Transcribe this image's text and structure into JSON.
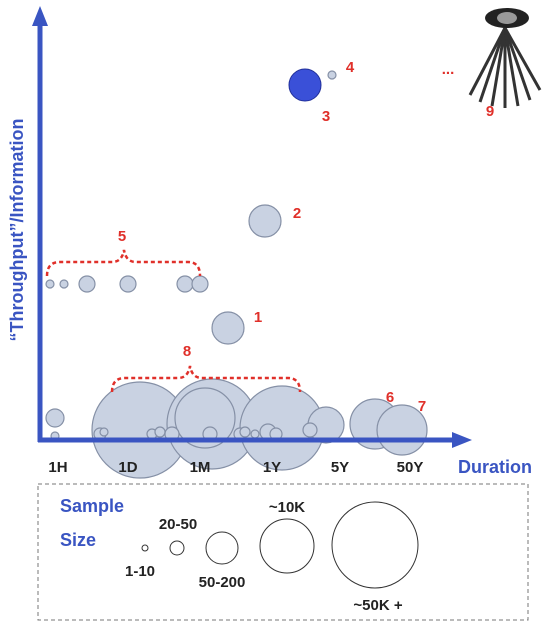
{
  "axes": {
    "y_label": "“Throughput”/Information",
    "x_label": "Duration",
    "x_ticks": [
      "1H",
      "1D",
      "1M",
      "1Y",
      "5Y",
      "50Y"
    ]
  },
  "annotations": [
    "1",
    "2",
    "3",
    "4",
    "5",
    "6",
    "7",
    "8",
    "9"
  ],
  "ellipsis": "...",
  "legend": {
    "title_line1": "Sample",
    "title_line2": "Size",
    "sizes": [
      "1-10",
      "20-50",
      "50-200",
      "~10K",
      "~50K +"
    ]
  }
}
